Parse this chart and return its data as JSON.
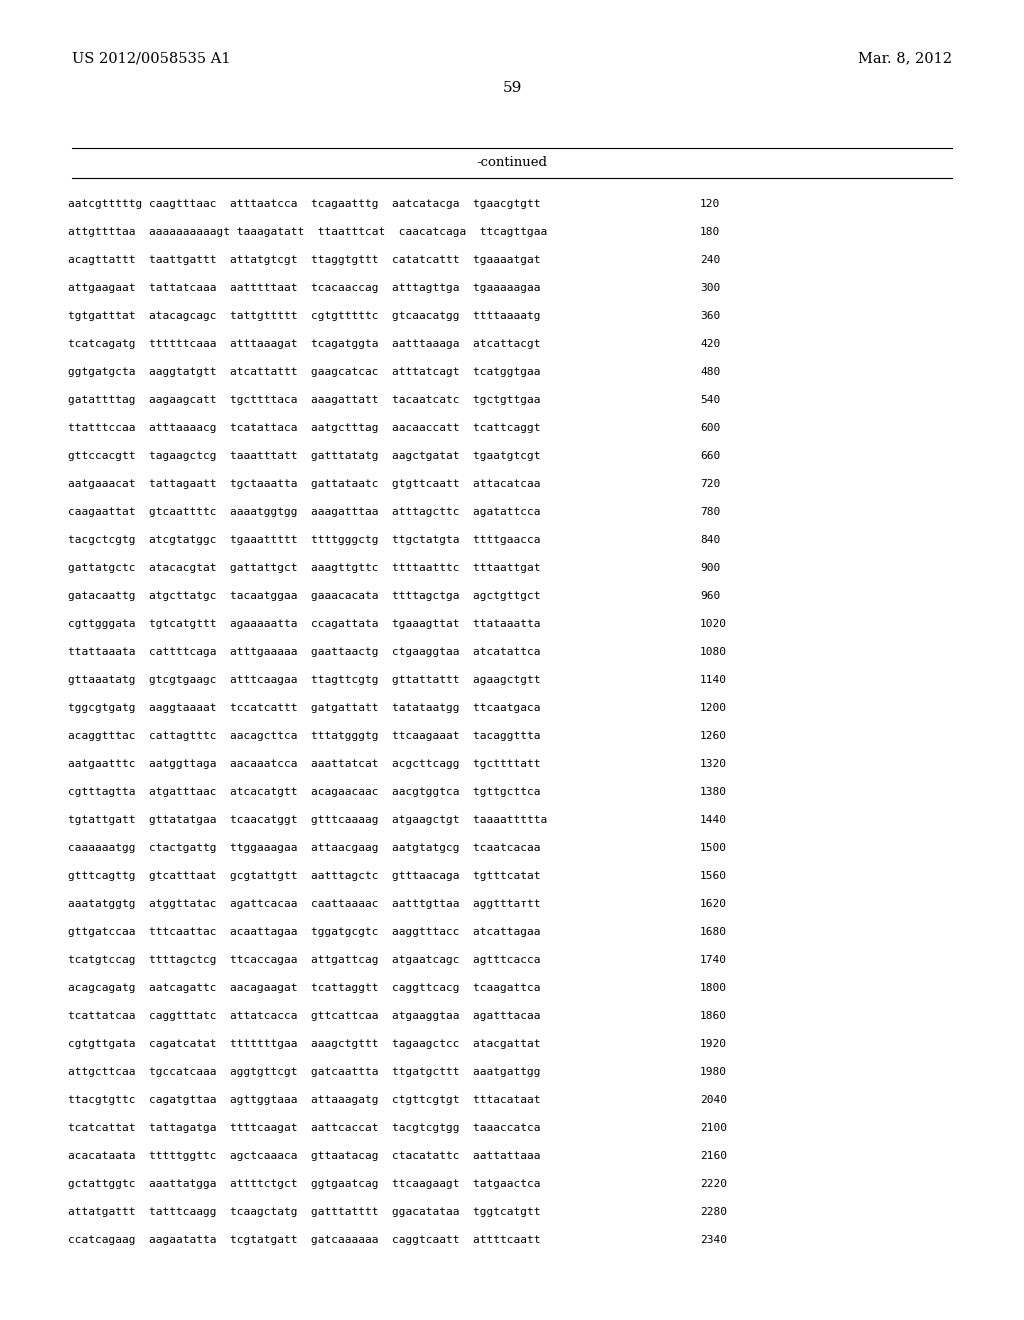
{
  "header_left": "US 2012/0058535 A1",
  "header_right": "Mar. 8, 2012",
  "page_number": "59",
  "continued_label": "-continued",
  "background_color": "#ffffff",
  "text_color": "#000000",
  "sequences": [
    {
      "seq": "aatcgtttttg caagtttaac  atttaatcca  tcagaatttg  aatcatacga  tgaacgtgtt",
      "num": "120"
    },
    {
      "seq": "attgttttaa  aaaaaaaaaagt taaagatatt  ttaatttcat  caacatcaga  ttcagttgaa",
      "num": "180"
    },
    {
      "seq": "acagttattt  taattgattt  attatgtcgt  ttaggtgttt  catatcattt  tgaaaatgat",
      "num": "240"
    },
    {
      "seq": "attgaagaat  tattatcaaa  aatttttaat  tcacaaccag  atttagttga  tgaaaaagaa",
      "num": "300"
    },
    {
      "seq": "tgtgatttat  atacagcagc  tattgttttt  cgtgtttttc  gtcaacatgg  ttttaaaatg",
      "num": "360"
    },
    {
      "seq": "tcatcagatg  ttttttcaaa  atttaaagat  tcagatggta  aatttaaaga  atcattacgt",
      "num": "420"
    },
    {
      "seq": "ggtgatgcta  aaggtatgtt  atcattattt  gaagcatcac  atttatcagt  tcatggtgaa",
      "num": "480"
    },
    {
      "seq": "gatattttag  aagaagcatt  tgcttttaca  aaagattatt  tacaatcatc  tgctgttgaa",
      "num": "540"
    },
    {
      "seq": "ttatttccaa  atttaaaacg  tcatattaca  aatgctttag  aacaaccatt  tcattcaggt",
      "num": "600"
    },
    {
      "seq": "gttccacgtt  tagaagctcg  taaatttatt  gatttatatg  aagctgatat  tgaatgtcgt",
      "num": "660"
    },
    {
      "seq": "aatgaaacat  tattagaatt  tgctaaatta  gattataatc  gtgttcaatt  attacatcaa",
      "num": "720"
    },
    {
      "seq": "caagaattat  gtcaattttc  aaaatggtgg  aaagatttaa  atttagcttc  agatattcca",
      "num": "780"
    },
    {
      "seq": "tacgctcgtg  atcgtatggc  tgaaattttt  ttttgggctg  ttgctatgta  ttttgaacca",
      "num": "840"
    },
    {
      "seq": "gattatgctc  atacacgtat  gattattgct  aaagttgttc  ttttaatttc  tttaattgat",
      "num": "900"
    },
    {
      "seq": "gatacaattg  atgcttatgc  tacaatggaa  gaaacacata  ttttagctga  agctgttgct",
      "num": "960"
    },
    {
      "seq": "cgttgggata  tgtcatgttt  agaaaaatta  ccagattata  tgaaagttat  ttataaatta",
      "num": "1020"
    },
    {
      "seq": "ttattaaata  cattttcaga  atttgaaaaa  gaattaactg  ctgaaggtaa  atcatattca",
      "num": "1080"
    },
    {
      "seq": "gttaaatatg  gtcgtgaagc  atttcaagaa  ttagttcgtg  gttattattt  agaagctgtt",
      "num": "1140"
    },
    {
      "seq": "tggcgtgatg  aaggtaaaat  tccatcattt  gatgattatt  tatataatgg  ttcaatgaca",
      "num": "1200"
    },
    {
      "seq": "acaggtttac  cattagtttc  aacagcttca  tttatgggtg  ttcaagaaat  tacaggttta",
      "num": "1260"
    },
    {
      "seq": "aatgaatttc  aatggttaga  aacaaatcca  aaattatcat  acgcttcagg  tgcttttatt",
      "num": "1320"
    },
    {
      "seq": "cgtttagtta  atgatttaac  atcacatgtt  acagaacaac  aacgtggtca  tgttgcttca",
      "num": "1380"
    },
    {
      "seq": "tgtattgatt  gttatatgaa  tcaacatggt  gtttcaaaag  atgaagctgt  taaaattttta",
      "num": "1440"
    },
    {
      "seq": "caaaaaatgg  ctactgattg  ttggaaagaa  attaacgaag  aatgtatgcg  tcaatcacaa",
      "num": "1500"
    },
    {
      "seq": "gtttcagttg  gtcatttaat  gcgtattgtt  aatttagctc  gtttaacaga  tgtttcatat",
      "num": "1560"
    },
    {
      "seq": "aaatatggtg  atggttatac  agattcacaa  caattaaaac  aatttgttaa  aggtttатtt",
      "num": "1620"
    },
    {
      "seq": "gttgatccaa  tttcaattac  acaattagaa  tggatgcgtc  aaggtttacc  atcattagaa",
      "num": "1680"
    },
    {
      "seq": "tcatgtccag  ttttagctcg  ttcaccagaa  attgattcag  atgaatcagc  agtttcacca",
      "num": "1740"
    },
    {
      "seq": "acagcagatg  aatcagattc  aacagaagat  tcattaggtt  caggttcacg  tcaagattca",
      "num": "1800"
    },
    {
      "seq": "tcattatcaa  caggtttatc  attatcacca  gttcattcaa  atgaaggtaa  agatttacaa",
      "num": "1860"
    },
    {
      "seq": "cgtgttgata  cagatcatat  tttttttgaa  aaagctgttt  tagaagctcc  atacgattat",
      "num": "1920"
    },
    {
      "seq": "attgcttcaa  tgccatcaaa  aggtgttcgt  gatcaattta  ttgatgcttt  aaatgattgg",
      "num": "1980"
    },
    {
      "seq": "ttacgtgttc  cagatgttaa  agttggtaaa  attaaagatg  ctgttcgtgt  tttacataat",
      "num": "2040"
    },
    {
      "seq": "tcatcattat  tattagatga  ttttcaagat  aattcaccat  tacgtcgtgg  taaaccatca",
      "num": "2100"
    },
    {
      "seq": "acacataata  tttttggttc  agctcaaaca  gttaatacag  ctacatattc  aattattaaa",
      "num": "2160"
    },
    {
      "seq": "gctattggtc  aaattatgga  attttctgct  ggtgaatcag  ttcaagaagt  tatgaactca",
      "num": "2220"
    },
    {
      "seq": "attatgattt  tatttcaagg  tcaagctatg  gatttatttt  ggacatataa  tggtcatgtt",
      "num": "2280"
    },
    {
      "seq": "ccatcagaag  aagaatatta  tcgtatgatt  gatcaaaaaa  caggtcaatt  attttcaatt",
      "num": "2340"
    }
  ]
}
